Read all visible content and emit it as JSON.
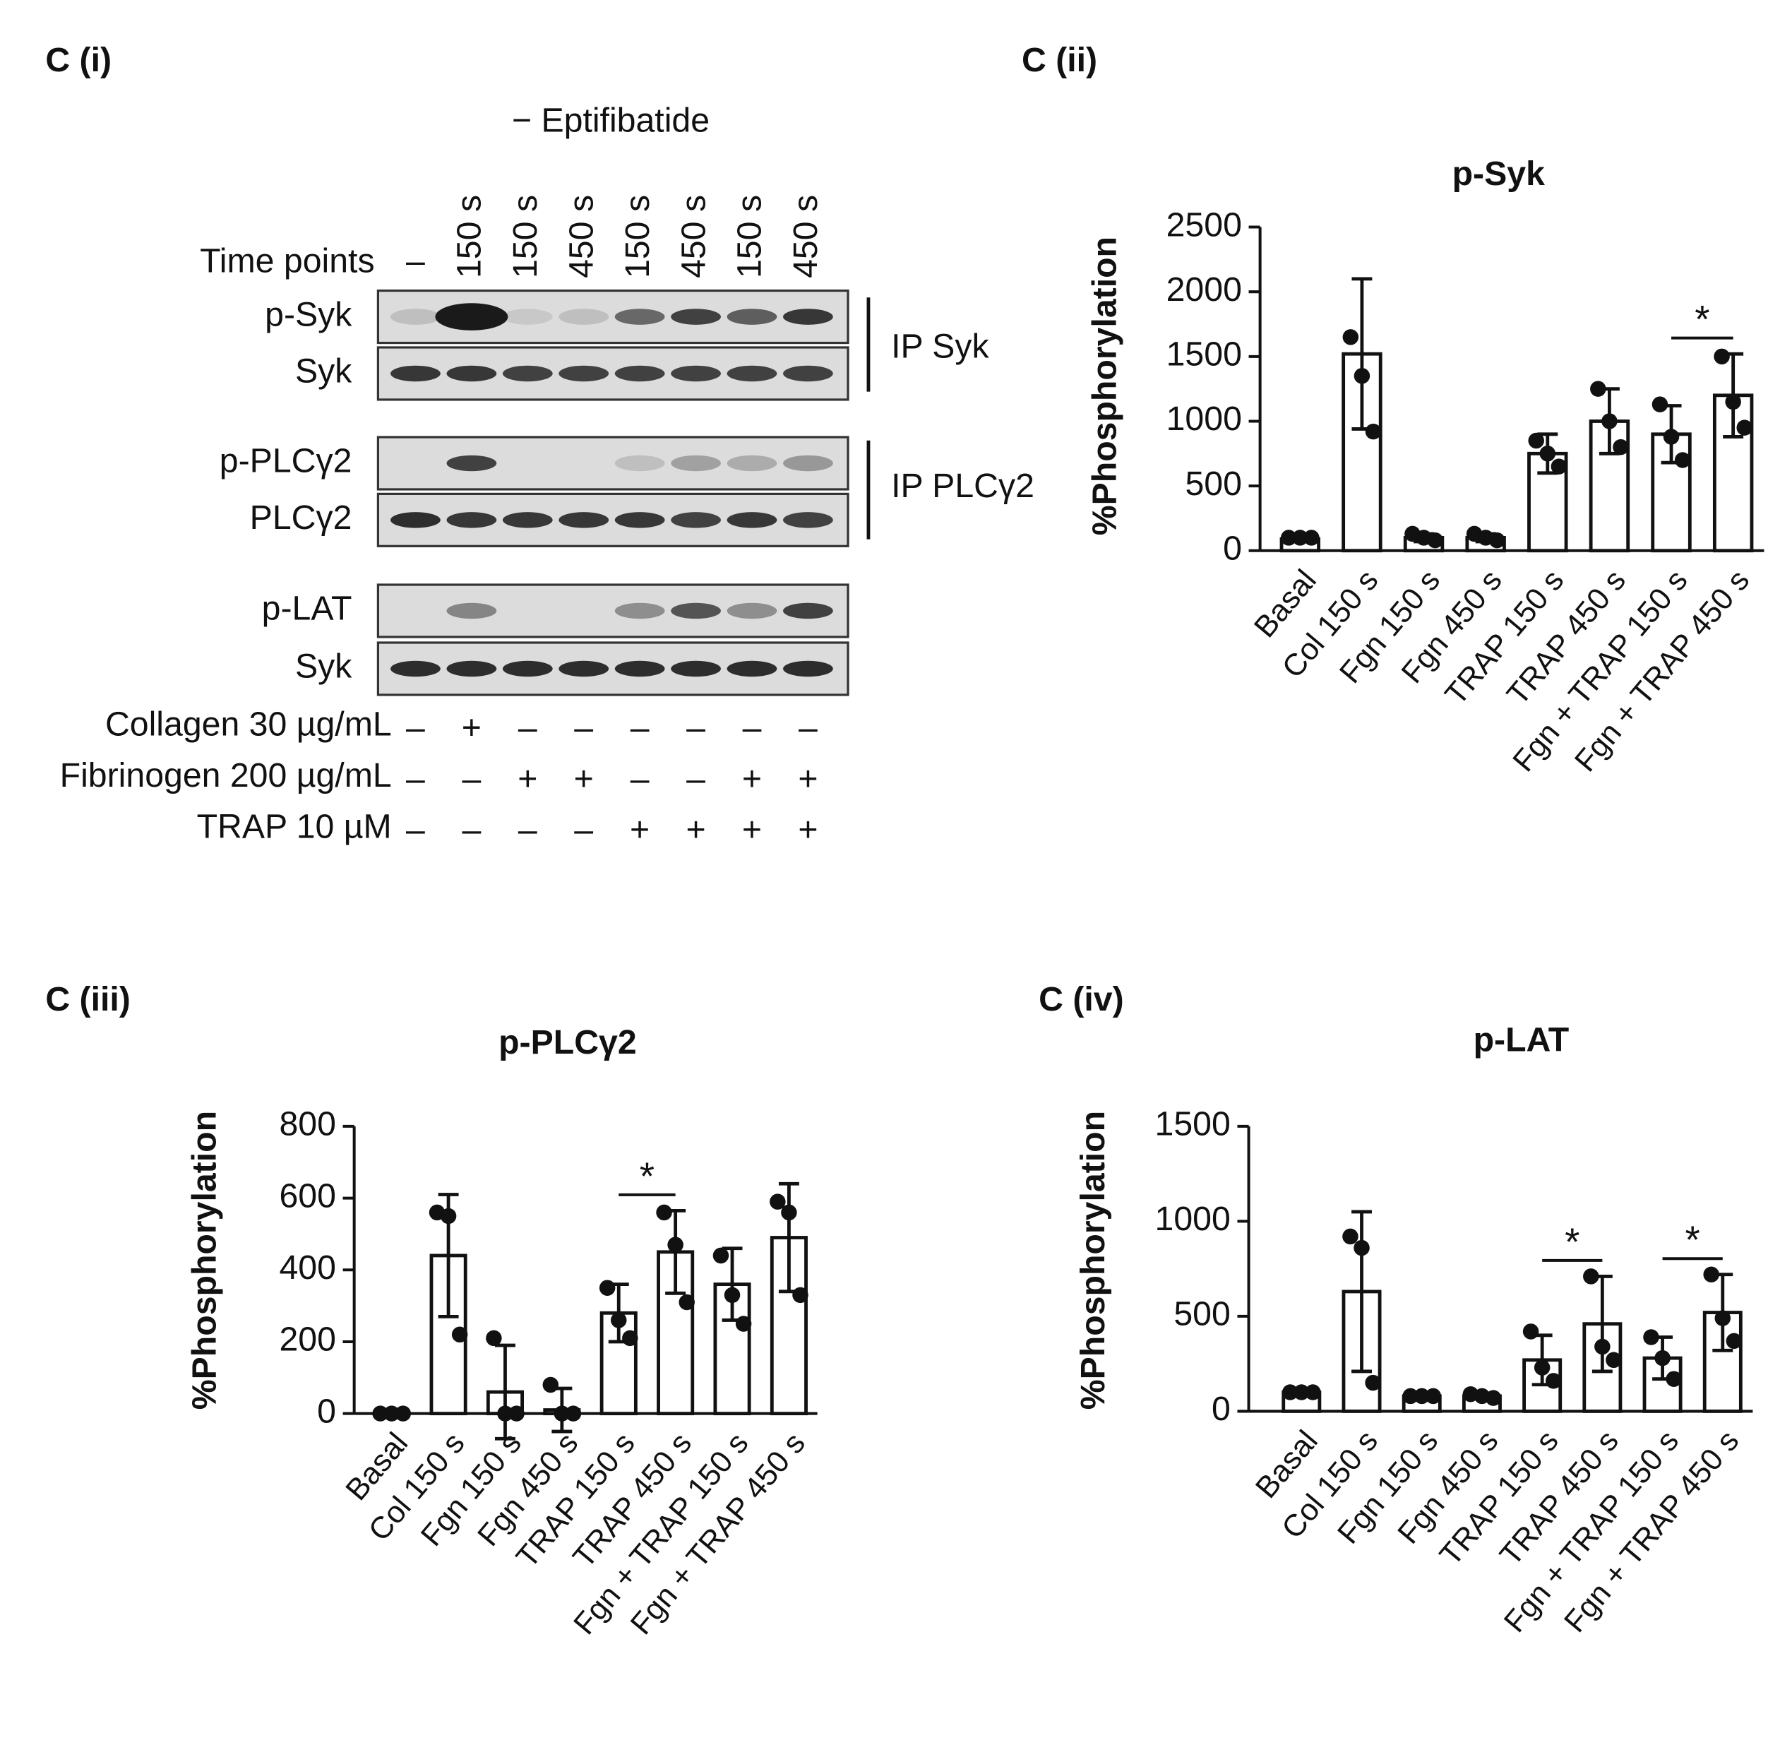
{
  "blot": {
    "panel": "C (i)",
    "condition": "− Eptifibatide",
    "time_label": "Time points",
    "time_points": [
      "–",
      "150 s",
      "150 s",
      "450 s",
      "150 s",
      "450 s",
      "150 s",
      "450 s"
    ],
    "rows": [
      "p-Syk",
      "Syk",
      "p-PLCγ2",
      "PLCγ2",
      "p-LAT",
      "Syk"
    ],
    "groups": [
      "IP Syk",
      "IP PLCγ2"
    ],
    "treatments": [
      {
        "label": "Collagen 30 µg/mL",
        "signs": [
          "–",
          "+",
          "–",
          "–",
          "–",
          "–",
          "–",
          "–"
        ]
      },
      {
        "label": "Fibrinogen 200 µg/mL",
        "signs": [
          "–",
          "–",
          "+",
          "+",
          "–",
          "–",
          "+",
          "+"
        ]
      },
      {
        "label": "TRAP 10 µM",
        "signs": [
          "–",
          "–",
          "–",
          "–",
          "+",
          "+",
          "+",
          "+"
        ]
      }
    ]
  },
  "chart_data": [
    {
      "type": "bar",
      "panel": "C (ii)",
      "title": "p-Syk",
      "ylabel": "%Phosphorylation",
      "categories": [
        "Basal",
        "Col 150 s",
        "Fgn 150 s",
        "Fgn 450 s",
        "TRAP 150 s",
        "TRAP 450 s",
        "Fgn + TRAP 150 s",
        "Fgn + TRAP 450 s"
      ],
      "values": [
        90,
        1520,
        100,
        100,
        750,
        1000,
        900,
        1200
      ],
      "errors": [
        10,
        580,
        30,
        30,
        150,
        250,
        220,
        320
      ],
      "points": [
        [
          100,
          100,
          100
        ],
        [
          1650,
          1350,
          920
        ],
        [
          130,
          100,
          80
        ],
        [
          130,
          100,
          80
        ],
        [
          850,
          750,
          650
        ],
        [
          1250,
          1000,
          800
        ],
        [
          1130,
          880,
          700
        ],
        [
          1500,
          1150,
          950
        ]
      ],
      "ylim": [
        0,
        2500
      ],
      "yticks": [
        0,
        500,
        1000,
        1500,
        2000,
        2500
      ],
      "annotations": [
        {
          "text": "*",
          "between": [
            "Fgn + TRAP 150 s",
            "Fgn + TRAP 450 s"
          ]
        }
      ]
    },
    {
      "type": "bar",
      "panel": "C (iii)",
      "title": "p-PLCγ2",
      "ylabel": "%Phosphorylation",
      "categories": [
        "Basal",
        "Col 150 s",
        "Fgn 150 s",
        "Fgn 450 s",
        "TRAP 150 s",
        "TRAP 450 s",
        "Fgn + TRAP 150 s",
        "Fgn + TRAP 450 s"
      ],
      "values": [
        0,
        440,
        60,
        10,
        280,
        450,
        360,
        490
      ],
      "errors": [
        0,
        170,
        130,
        60,
        80,
        115,
        100,
        150
      ],
      "points": [
        [
          0,
          0,
          0
        ],
        [
          560,
          550,
          220
        ],
        [
          210,
          0,
          0
        ],
        [
          80,
          0,
          0
        ],
        [
          350,
          260,
          210
        ],
        [
          560,
          470,
          310
        ],
        [
          440,
          330,
          250
        ],
        [
          590,
          560,
          330
        ]
      ],
      "ylim": [
        0,
        800
      ],
      "yticks": [
        0,
        200,
        400,
        600,
        800
      ],
      "annotations": [
        {
          "text": "*",
          "between": [
            "TRAP 150 s",
            "TRAP 450 s"
          ]
        }
      ]
    },
    {
      "type": "bar",
      "panel": "C (iv)",
      "title": "p-LAT",
      "ylabel": "%Phosphorylation",
      "categories": [
        "Basal",
        "Col 150 s",
        "Fgn 150 s",
        "Fgn 450 s",
        "TRAP 150 s",
        "TRAP 450 s",
        "Fgn + TRAP 150 s",
        "Fgn + TRAP 450 s"
      ],
      "values": [
        100,
        630,
        80,
        80,
        270,
        460,
        280,
        520
      ],
      "errors": [
        5,
        420,
        10,
        15,
        130,
        250,
        110,
        200
      ],
      "points": [
        [
          100,
          100,
          100
        ],
        [
          920,
          860,
          150
        ],
        [
          80,
          80,
          80
        ],
        [
          90,
          80,
          70
        ],
        [
          420,
          230,
          160
        ],
        [
          710,
          340,
          270
        ],
        [
          390,
          280,
          170
        ],
        [
          720,
          490,
          370
        ]
      ],
      "ylim": [
        0,
        1500
      ],
      "yticks": [
        0,
        500,
        1000,
        1500
      ],
      "annotations": [
        {
          "text": "*",
          "between": [
            "TRAP 150 s",
            "TRAP 450 s"
          ]
        },
        {
          "text": "*",
          "between": [
            "Fgn + TRAP 150 s",
            "Fgn + TRAP 450 s"
          ]
        }
      ]
    }
  ]
}
